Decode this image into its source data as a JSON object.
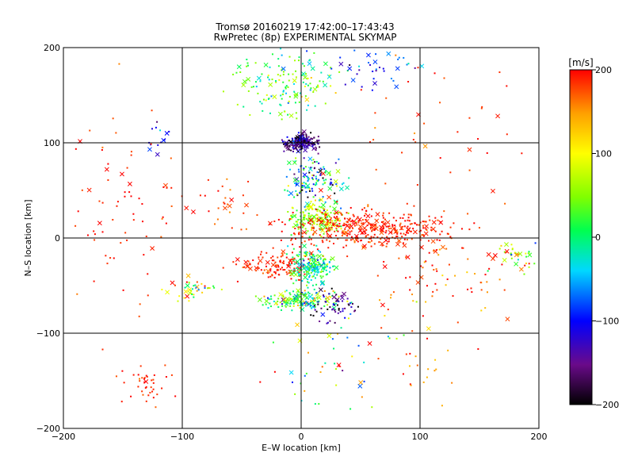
{
  "chart_data": {
    "type": "scatter",
    "title_line1": "Tromsø 20160219 17:42:00–17:43:43",
    "title_line2": "RwPretec (8p) EXPERIMENTAL SKYMAP",
    "xlabel": "E–W location [km]",
    "ylabel": "N–S location [km]",
    "xlim": [
      -200,
      200
    ],
    "ylim": [
      -200,
      200
    ],
    "xticks": [
      "−200",
      "−100",
      "0",
      "100",
      "200"
    ],
    "yticks": [
      "−200",
      "−100",
      "0",
      "100",
      "200"
    ],
    "grid": true,
    "markers": [
      "dot",
      "x"
    ],
    "colorbar": {
      "label": "[m/s]",
      "min": -200,
      "max": 200,
      "ticks": [
        "200",
        "100",
        "0",
        "−100",
        "−200"
      ],
      "colormap": "black-purple-blue-cyan-green-yellow-red"
    },
    "clusters_approx": [
      {
        "x": 0,
        "y": 100,
        "velocity": -150
      },
      {
        "x": 15,
        "y": 20,
        "velocity": 60
      },
      {
        "x": 60,
        "y": 10,
        "velocity": 190
      },
      {
        "x": 10,
        "y": -30,
        "velocity": 0
      },
      {
        "x": 0,
        "y": -65,
        "velocity": 30
      },
      {
        "x": 30,
        "y": -70,
        "velocity": -150
      },
      {
        "x": -130,
        "y": -155,
        "velocity": 190
      },
      {
        "x": 0,
        "y": 160,
        "velocity": 30
      },
      {
        "x": 180,
        "y": -20,
        "velocity": 80
      }
    ]
  }
}
